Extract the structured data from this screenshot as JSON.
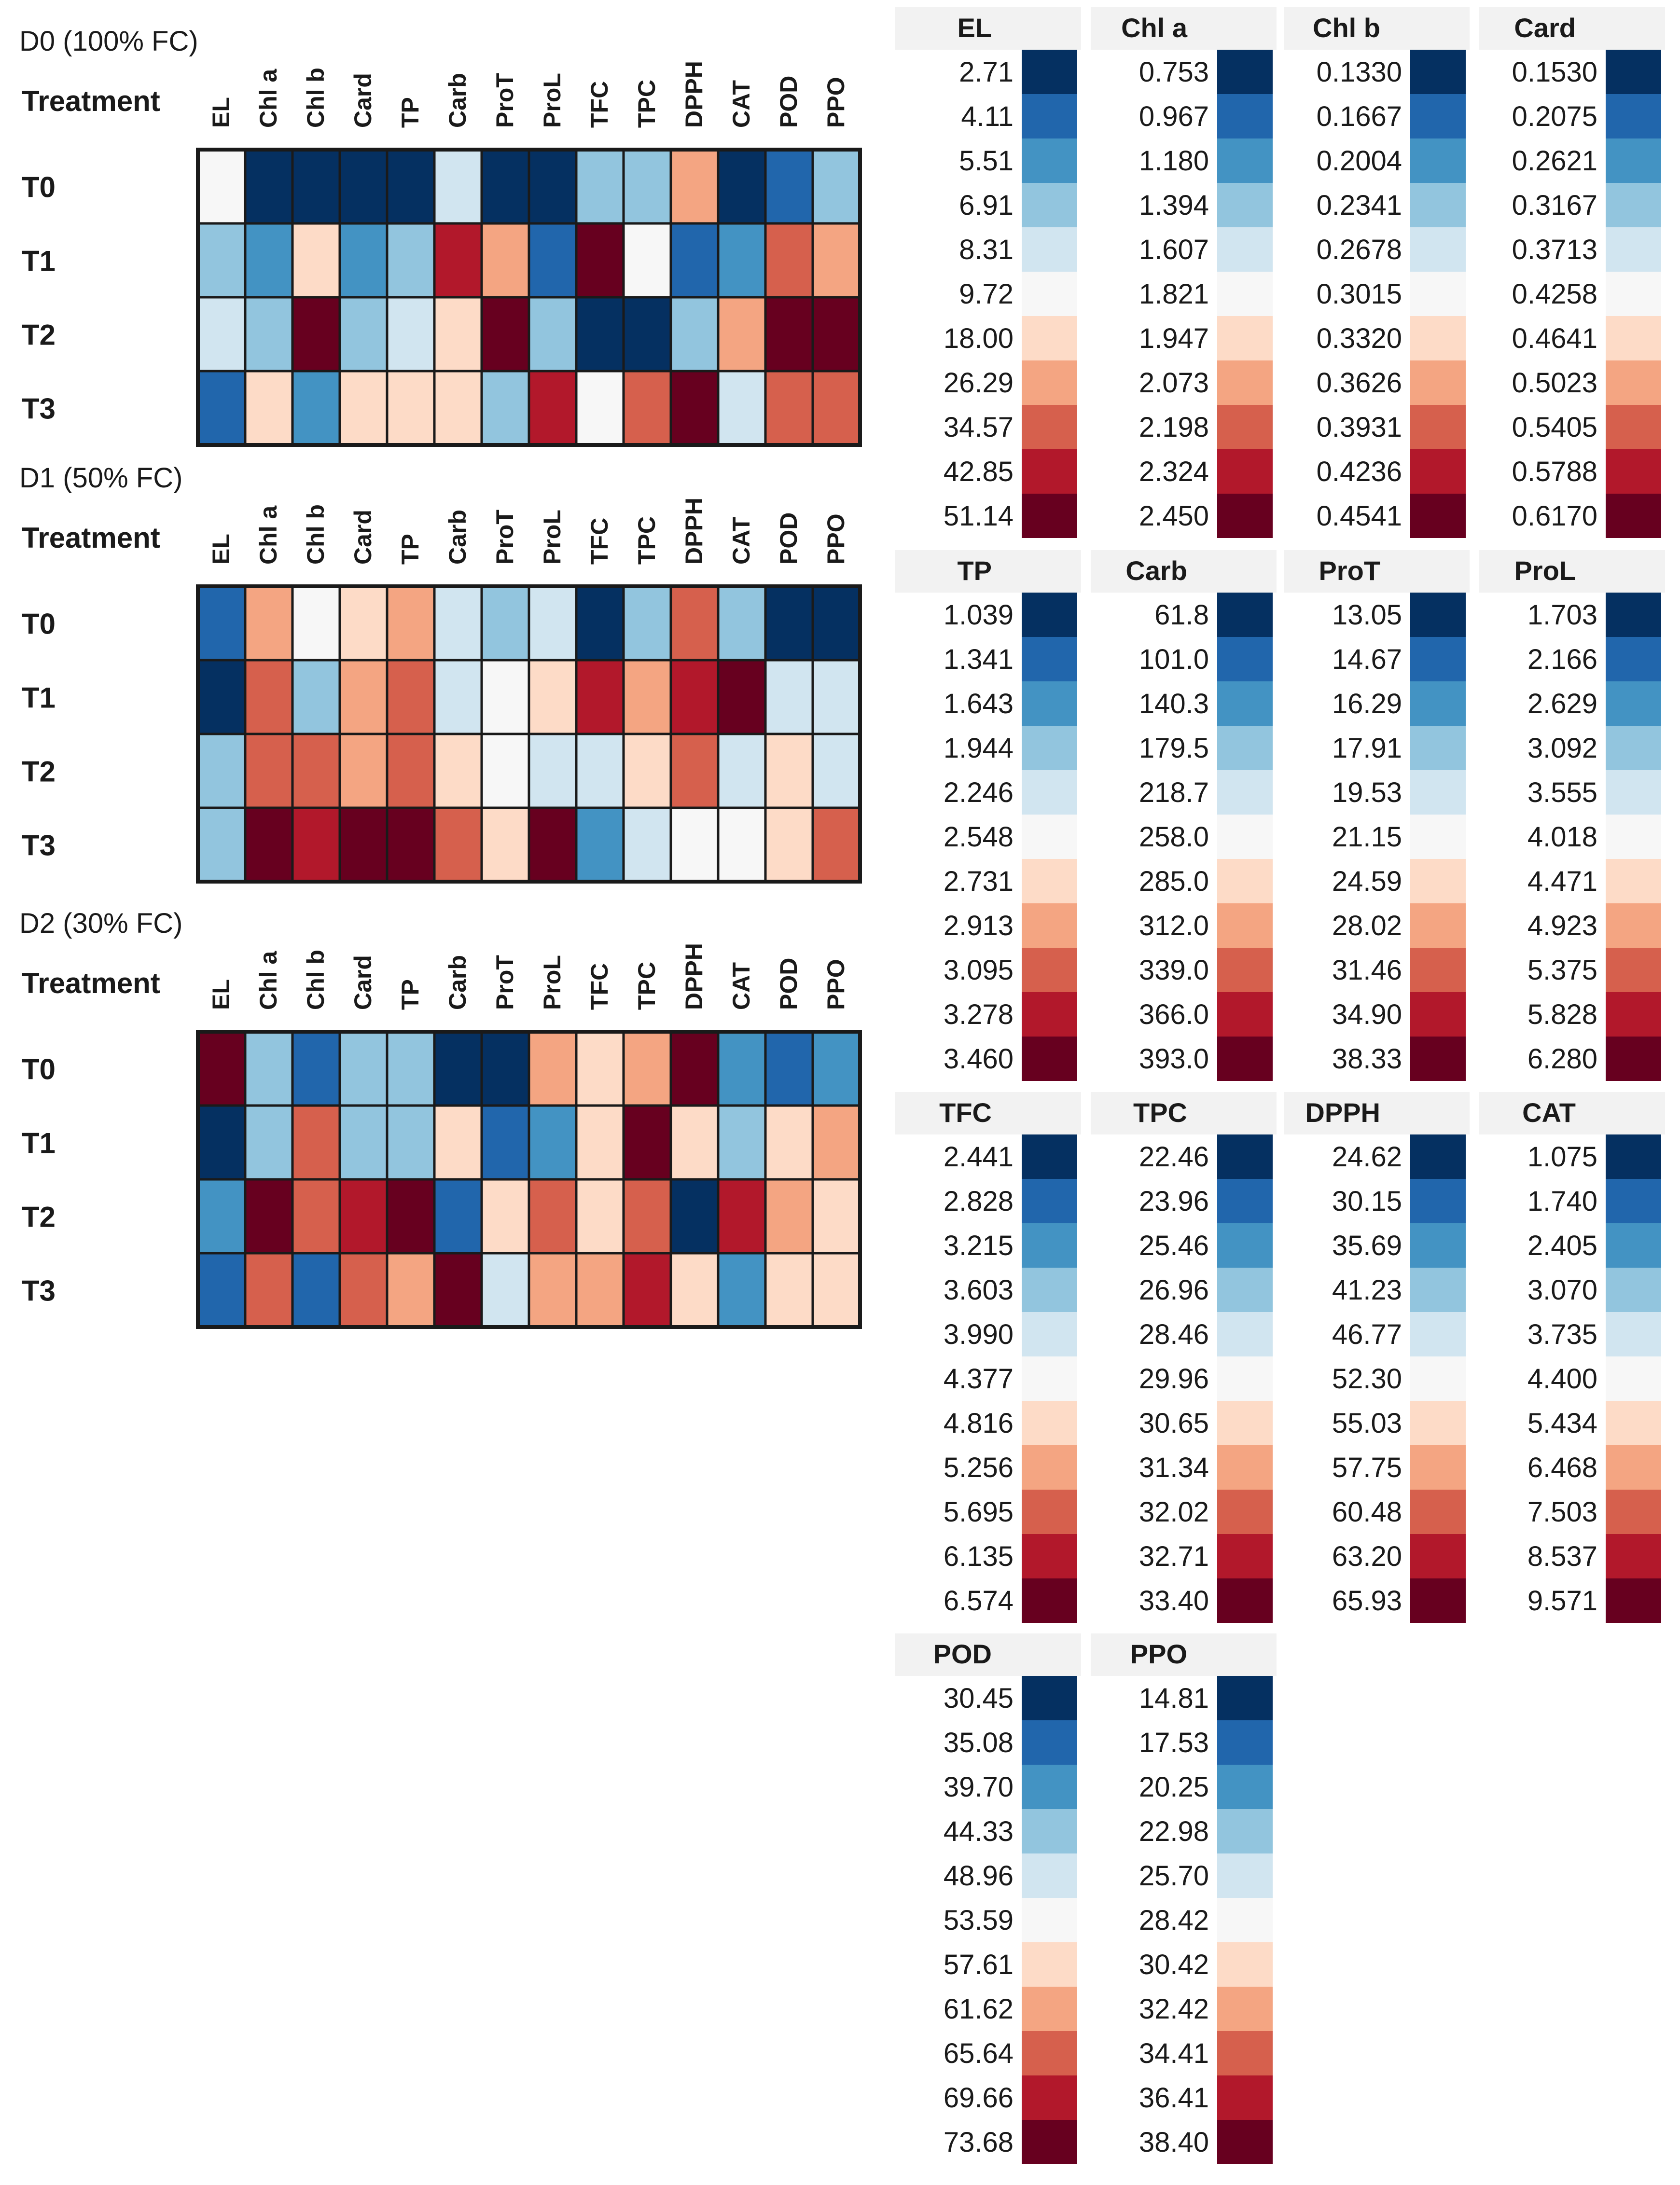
{
  "colors": {
    "scale": [
      "#053061",
      "#2166ac",
      "#4393c3",
      "#92c5de",
      "#d1e5f0",
      "#f7f7f7",
      "#fddbc7",
      "#f4a582",
      "#d6604d",
      "#b2182b",
      "#67001f"
    ],
    "legend_header_bg": "#f2f2f2",
    "border": "#1a1a1a"
  },
  "chart_data": {
    "type": "heatmap",
    "treatment_label": "Treatment",
    "variables": [
      "EL",
      "Chl a",
      "Chl b",
      "Card",
      "TP",
      "Carb",
      "ProT",
      "ProL",
      "TFC",
      "TPC",
      "DPPH",
      "CAT",
      "POD",
      "PPO"
    ],
    "column_labels": [
      "EL",
      "Chl a",
      "Chl b",
      "Card",
      "TP",
      "Carb",
      "ProT",
      "ProL",
      "TFC",
      "TPC",
      "DPPH",
      "CAT",
      "POD",
      "PPO"
    ],
    "treatments": [
      "T0",
      "T1",
      "T2",
      "T3"
    ],
    "panels": [
      {
        "title": "D0 (100% FC)",
        "levels": [
          [
            5,
            0,
            0,
            0,
            0,
            4,
            0,
            0,
            3,
            3,
            7,
            0,
            1,
            3
          ],
          [
            3,
            2,
            6,
            2,
            3,
            9,
            7,
            1,
            10,
            5,
            1,
            2,
            8,
            7
          ],
          [
            4,
            3,
            10,
            3,
            4,
            6,
            10,
            3,
            0,
            0,
            3,
            7,
            10,
            10
          ],
          [
            1,
            6,
            2,
            6,
            6,
            6,
            3,
            9,
            5,
            8,
            10,
            4,
            8,
            8
          ]
        ]
      },
      {
        "title": "D1 (50% FC)",
        "levels": [
          [
            1,
            7,
            5,
            6,
            7,
            4,
            3,
            4,
            0,
            3,
            8,
            3,
            0,
            0
          ],
          [
            0,
            8,
            3,
            7,
            8,
            4,
            5,
            6,
            9,
            7,
            9,
            10,
            4,
            4
          ],
          [
            3,
            8,
            8,
            7,
            8,
            6,
            5,
            4,
            4,
            6,
            8,
            4,
            6,
            4
          ],
          [
            3,
            10,
            9,
            10,
            10,
            8,
            6,
            10,
            2,
            4,
            5,
            5,
            6,
            8
          ]
        ]
      },
      {
        "title": "D2 (30% FC)",
        "levels": [
          [
            10,
            3,
            1,
            3,
            3,
            0,
            0,
            7,
            6,
            7,
            10,
            2,
            1,
            2
          ],
          [
            0,
            3,
            8,
            3,
            3,
            6,
            1,
            2,
            6,
            10,
            6,
            3,
            6,
            7
          ],
          [
            2,
            10,
            8,
            9,
            10,
            1,
            6,
            8,
            6,
            8,
            0,
            9,
            7,
            6
          ],
          [
            1,
            8,
            1,
            8,
            7,
            10,
            4,
            7,
            7,
            9,
            6,
            2,
            6,
            6
          ]
        ]
      }
    ],
    "legend": [
      {
        "name": "EL",
        "values": [
          "2.71",
          "4.11",
          "5.51",
          "6.91",
          "8.31",
          "9.72",
          "18.00",
          "26.29",
          "34.57",
          "42.85",
          "51.14"
        ]
      },
      {
        "name": "Chl a",
        "values": [
          "0.753",
          "0.967",
          "1.180",
          "1.394",
          "1.607",
          "1.821",
          "1.947",
          "2.073",
          "2.198",
          "2.324",
          "2.450"
        ]
      },
      {
        "name": "Chl b",
        "values": [
          "0.1330",
          "0.1667",
          "0.2004",
          "0.2341",
          "0.2678",
          "0.3015",
          "0.3320",
          "0.3626",
          "0.3931",
          "0.4236",
          "0.4541"
        ]
      },
      {
        "name": "Card",
        "values": [
          "0.1530",
          "0.2075",
          "0.2621",
          "0.3167",
          "0.3713",
          "0.4258",
          "0.4641",
          "0.5023",
          "0.5405",
          "0.5788",
          "0.6170"
        ]
      },
      {
        "name": "TP",
        "values": [
          "1.039",
          "1.341",
          "1.643",
          "1.944",
          "2.246",
          "2.548",
          "2.731",
          "2.913",
          "3.095",
          "3.278",
          "3.460"
        ]
      },
      {
        "name": "Carb",
        "values": [
          "61.8",
          "101.0",
          "140.3",
          "179.5",
          "218.7",
          "258.0",
          "285.0",
          "312.0",
          "339.0",
          "366.0",
          "393.0"
        ]
      },
      {
        "name": "ProT",
        "values": [
          "13.05",
          "14.67",
          "16.29",
          "17.91",
          "19.53",
          "21.15",
          "24.59",
          "28.02",
          "31.46",
          "34.90",
          "38.33"
        ]
      },
      {
        "name": "ProL",
        "values": [
          "1.703",
          "2.166",
          "2.629",
          "3.092",
          "3.555",
          "4.018",
          "4.471",
          "4.923",
          "5.375",
          "5.828",
          "6.280"
        ]
      },
      {
        "name": "TFC",
        "values": [
          "2.441",
          "2.828",
          "3.215",
          "3.603",
          "3.990",
          "4.377",
          "4.816",
          "5.256",
          "5.695",
          "6.135",
          "6.574"
        ]
      },
      {
        "name": "TPC",
        "values": [
          "22.46",
          "23.96",
          "25.46",
          "26.96",
          "28.46",
          "29.96",
          "30.65",
          "31.34",
          "32.02",
          "32.71",
          "33.40"
        ]
      },
      {
        "name": "DPPH",
        "values": [
          "24.62",
          "30.15",
          "35.69",
          "41.23",
          "46.77",
          "52.30",
          "55.03",
          "57.75",
          "60.48",
          "63.20",
          "65.93"
        ]
      },
      {
        "name": "CAT",
        "values": [
          "1.075",
          "1.740",
          "2.405",
          "3.070",
          "3.735",
          "4.400",
          "5.434",
          "6.468",
          "7.503",
          "8.537",
          "9.571"
        ]
      },
      {
        "name": "POD",
        "values": [
          "30.45",
          "35.08",
          "39.70",
          "44.33",
          "48.96",
          "53.59",
          "57.61",
          "61.62",
          "65.64",
          "69.66",
          "73.68"
        ]
      },
      {
        "name": "PPO",
        "values": [
          "14.81",
          "17.53",
          "20.25",
          "22.98",
          "25.70",
          "28.42",
          "30.42",
          "32.42",
          "34.41",
          "36.41",
          "38.40"
        ]
      }
    ]
  }
}
